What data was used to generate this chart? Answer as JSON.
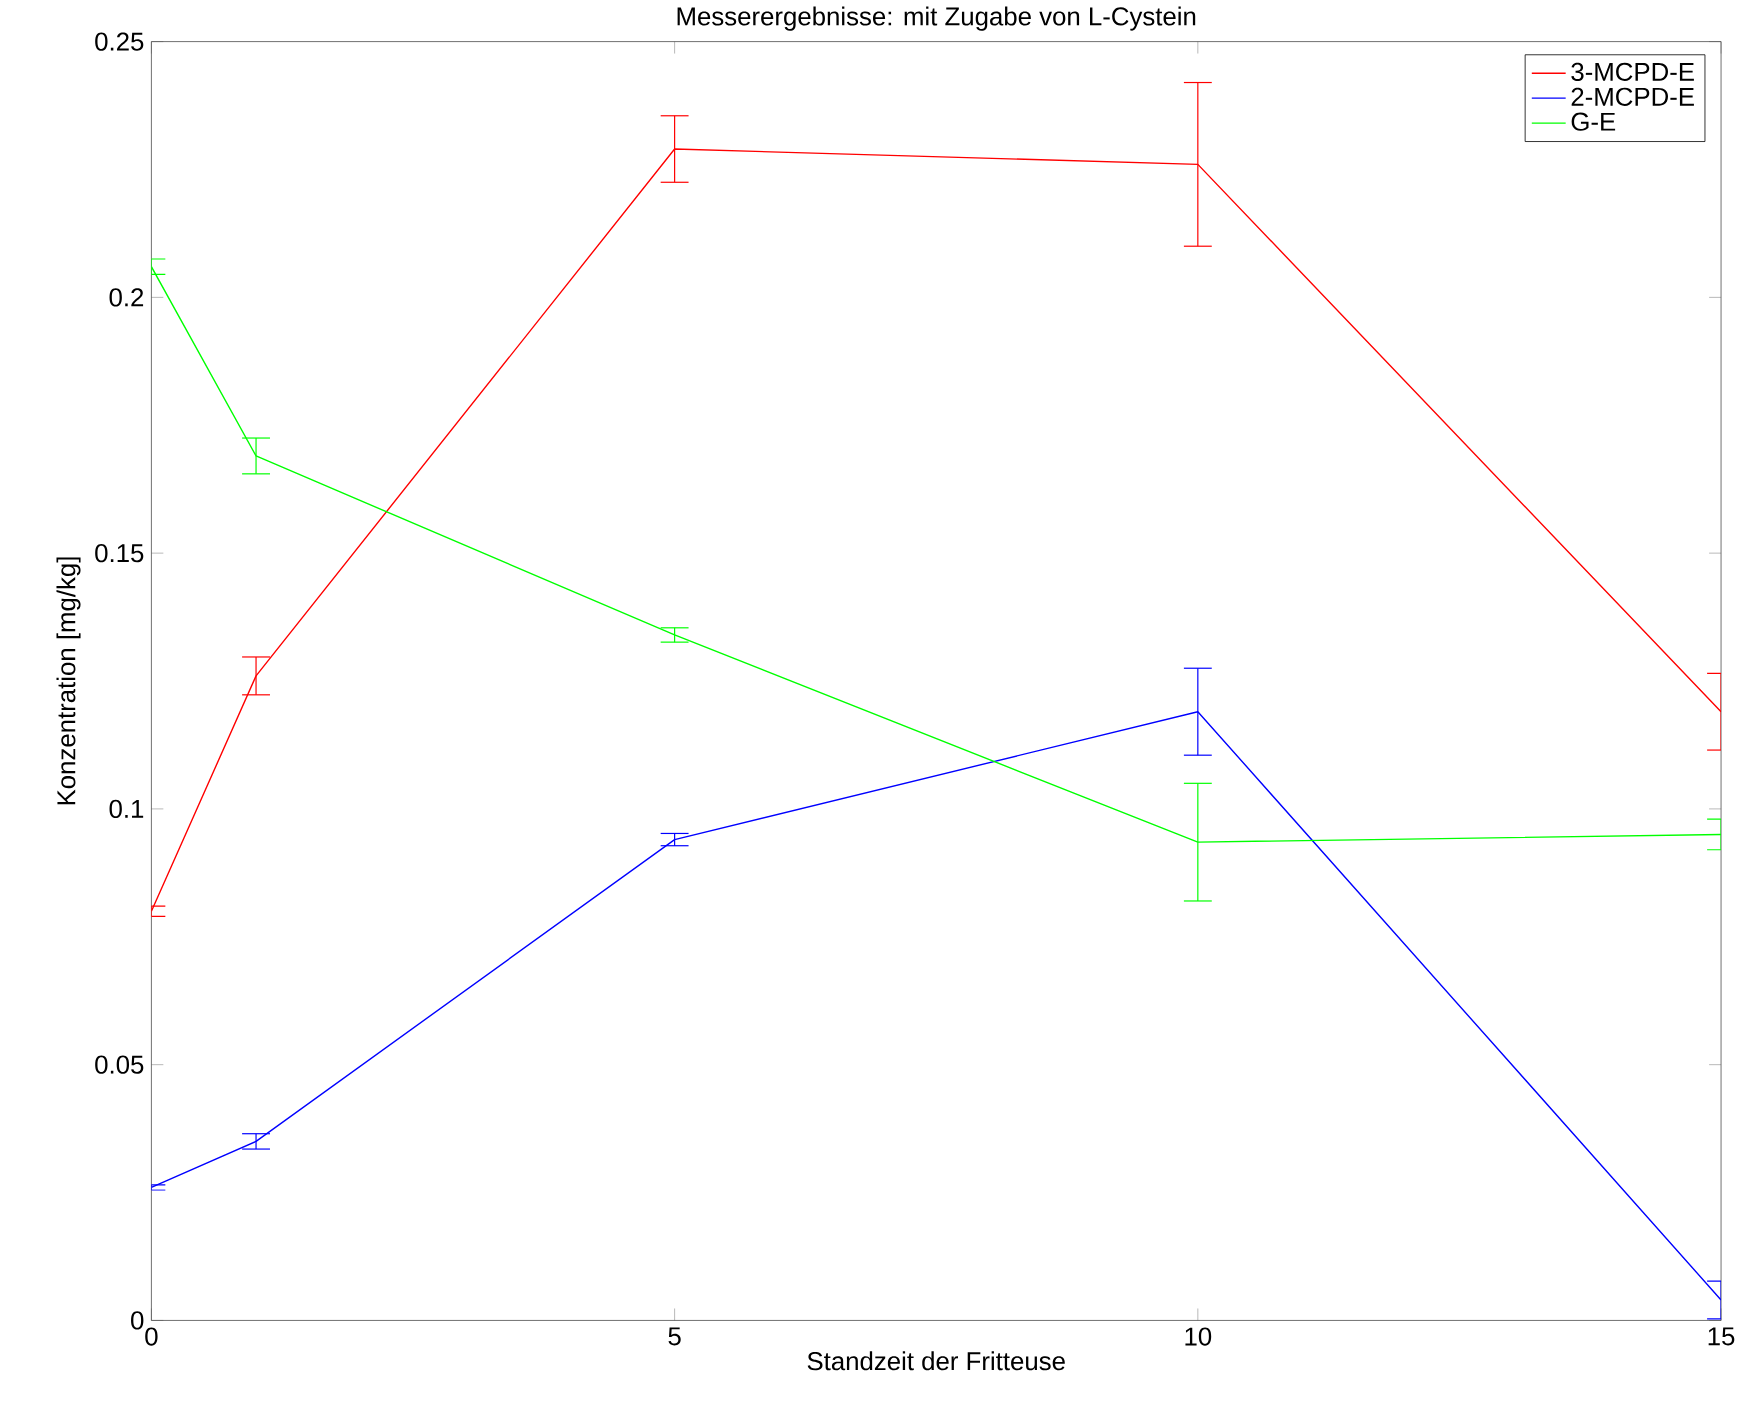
{
  "chart_data": {
    "type": "line",
    "title": "Messerergebnisse: mit Zugabe von L-Cystein",
    "xlabel": "Standzeit der Fritteuse",
    "ylabel": "Konzentration [mg/kg]",
    "x": [
      0,
      1,
      5,
      10,
      15
    ],
    "series": [
      {
        "name": "3-MCPD-E",
        "color": "#ff0000",
        "values": [
          0.08,
          0.126,
          0.229,
          0.226,
          0.119
        ],
        "errors": [
          0.001,
          0.0037,
          0.0065,
          0.016,
          0.0075
        ]
      },
      {
        "name": "2-MCPD-E",
        "color": "#0000ff",
        "values": [
          0.026,
          0.035,
          0.094,
          0.119,
          0.004
        ],
        "errors": [
          0.0005,
          0.0015,
          0.0012,
          0.0085,
          0.0037
        ]
      },
      {
        "name": "G-E",
        "color": "#00ff00",
        "values": [
          0.206,
          0.169,
          0.134,
          0.0935,
          0.095
        ],
        "errors": [
          0.0015,
          0.0035,
          0.0014,
          0.0115,
          0.003
        ]
      }
    ],
    "xlim": [
      0,
      15
    ],
    "xticks": [
      0,
      5,
      10,
      15
    ],
    "ylim": [
      0,
      0.25
    ],
    "yticks": [
      0,
      0.05,
      0.1,
      0.15,
      0.2,
      0.25
    ],
    "grid": false,
    "legend": "top right",
    "marker": "none",
    "line_style": "solid"
  }
}
